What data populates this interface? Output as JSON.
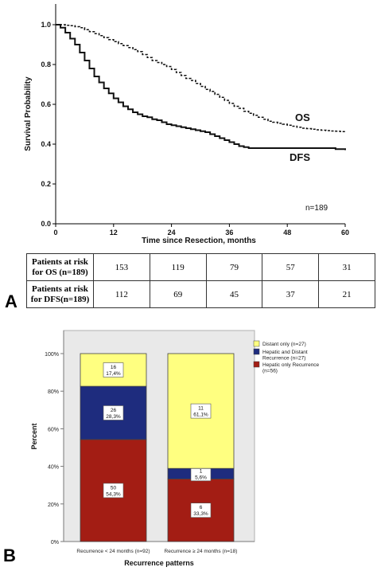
{
  "panels": {
    "a_label": "A",
    "b_label": "B"
  },
  "chart_data": [
    {
      "type": "line",
      "panel": "A",
      "xlabel": "Time since Resection, months",
      "ylabel": "Survival Probability",
      "xlim": [
        0,
        60
      ],
      "ylim": [
        0.0,
        1.0
      ],
      "x_ticks": [
        "0",
        "12",
        "24",
        "36",
        "48",
        "60"
      ],
      "y_ticks": [
        "0.0",
        "0.2",
        "0.4",
        "0.6",
        "0.8",
        "1.0"
      ],
      "annotation": "n=189",
      "series": [
        {
          "name": "OS",
          "style": "dashed",
          "color": "#111111",
          "points": [
            [
              0,
              1.0
            ],
            [
              1,
              1.0
            ],
            [
              2,
              0.997
            ],
            [
              3,
              0.995
            ],
            [
              4,
              0.99
            ],
            [
              5,
              0.985
            ],
            [
              6,
              0.975
            ],
            [
              7,
              0.965
            ],
            [
              8,
              0.955
            ],
            [
              9,
              0.945
            ],
            [
              10,
              0.935
            ],
            [
              11,
              0.925
            ],
            [
              12,
              0.915
            ],
            [
              13,
              0.905
            ],
            [
              14,
              0.895
            ],
            [
              15,
              0.885
            ],
            [
              16,
              0.875
            ],
            [
              17,
              0.865
            ],
            [
              18,
              0.85
            ],
            [
              19,
              0.835
            ],
            [
              20,
              0.82
            ],
            [
              21,
              0.81
            ],
            [
              22,
              0.8
            ],
            [
              23,
              0.79
            ],
            [
              24,
              0.775
            ],
            [
              25,
              0.76
            ],
            [
              26,
              0.745
            ],
            [
              27,
              0.73
            ],
            [
              28,
              0.72
            ],
            [
              29,
              0.705
            ],
            [
              30,
              0.69
            ],
            [
              31,
              0.675
            ],
            [
              32,
              0.665
            ],
            [
              33,
              0.65
            ],
            [
              34,
              0.635
            ],
            [
              35,
              0.62
            ],
            [
              36,
              0.605
            ],
            [
              37,
              0.59
            ],
            [
              38,
              0.58
            ],
            [
              39,
              0.565
            ],
            [
              40,
              0.555
            ],
            [
              41,
              0.545
            ],
            [
              42,
              0.535
            ],
            [
              43,
              0.525
            ],
            [
              44,
              0.515
            ],
            [
              45,
              0.51
            ],
            [
              46,
              0.505
            ],
            [
              47,
              0.5
            ],
            [
              48,
              0.495
            ],
            [
              49,
              0.49
            ],
            [
              50,
              0.485
            ],
            [
              51,
              0.48
            ],
            [
              52,
              0.478
            ],
            [
              53,
              0.475
            ],
            [
              54,
              0.472
            ],
            [
              55,
              0.47
            ],
            [
              56,
              0.468
            ],
            [
              57,
              0.466
            ],
            [
              58,
              0.465
            ],
            [
              59,
              0.463
            ],
            [
              60,
              0.46
            ]
          ]
        },
        {
          "name": "DFS",
          "style": "solid",
          "color": "#111111",
          "points": [
            [
              0,
              1.0
            ],
            [
              1,
              0.985
            ],
            [
              2,
              0.96
            ],
            [
              3,
              0.93
            ],
            [
              4,
              0.9
            ],
            [
              5,
              0.86
            ],
            [
              6,
              0.82
            ],
            [
              7,
              0.78
            ],
            [
              8,
              0.74
            ],
            [
              9,
              0.71
            ],
            [
              10,
              0.68
            ],
            [
              11,
              0.655
            ],
            [
              12,
              0.63
            ],
            [
              13,
              0.61
            ],
            [
              14,
              0.59
            ],
            [
              15,
              0.575
            ],
            [
              16,
              0.56
            ],
            [
              17,
              0.55
            ],
            [
              18,
              0.54
            ],
            [
              19,
              0.535
            ],
            [
              20,
              0.525
            ],
            [
              21,
              0.52
            ],
            [
              22,
              0.51
            ],
            [
              23,
              0.5
            ],
            [
              24,
              0.495
            ],
            [
              25,
              0.49
            ],
            [
              26,
              0.485
            ],
            [
              27,
              0.48
            ],
            [
              28,
              0.475
            ],
            [
              29,
              0.47
            ],
            [
              30,
              0.465
            ],
            [
              31,
              0.46
            ],
            [
              32,
              0.45
            ],
            [
              33,
              0.44
            ],
            [
              34,
              0.43
            ],
            [
              35,
              0.42
            ],
            [
              36,
              0.41
            ],
            [
              37,
              0.4
            ],
            [
              38,
              0.39
            ],
            [
              39,
              0.385
            ],
            [
              40,
              0.38
            ],
            [
              42,
              0.38
            ],
            [
              44,
              0.38
            ],
            [
              46,
              0.38
            ],
            [
              48,
              0.38
            ],
            [
              50,
              0.38
            ],
            [
              52,
              0.38
            ],
            [
              54,
              0.38
            ],
            [
              56,
              0.38
            ],
            [
              58,
              0.375
            ],
            [
              60,
              0.37
            ]
          ]
        }
      ],
      "risk_table": {
        "rows": [
          {
            "label": "Patients at risk for OS (n=189)",
            "values": [
              "153",
              "119",
              "79",
              "57",
              "31"
            ]
          },
          {
            "label": "Patients at risk for DFS(n=189)",
            "values": [
              "112",
              "69",
              "45",
              "37",
              "21"
            ]
          }
        ]
      }
    },
    {
      "type": "bar",
      "stacked": true,
      "panel": "B",
      "xlabel": "Recurrence patterns",
      "ylabel": "Percent",
      "ylim": [
        0,
        100
      ],
      "y_ticks": [
        "0%",
        "20%",
        "40%",
        "60%",
        "80%",
        "100%"
      ],
      "categories": [
        "Recurrence < 24 months (n=92)",
        "Recurrence ≥ 24 months (n=18)"
      ],
      "legend_position": "top-right",
      "series": [
        {
          "name": "Hepatic only Recurrence (n=56)",
          "color": "#a31d14",
          "values": [
            54.3,
            33.3
          ],
          "labels": [
            [
              "50",
              "54,3%"
            ],
            [
              "6",
              "33,3%"
            ]
          ]
        },
        {
          "name": "Hepatic and Distant Recurrence (n=27)",
          "color": "#1e2c7e",
          "values": [
            28.3,
            5.6
          ],
          "labels": [
            [
              "26",
              "28,3%"
            ],
            [
              "1",
              "5,6%"
            ]
          ]
        },
        {
          "name": "Distant only (n=27)",
          "color": "#ffff80",
          "values": [
            17.4,
            61.1
          ],
          "labels": [
            [
              "16",
              "17,4%"
            ],
            [
              "11",
              "61,1%"
            ]
          ]
        }
      ]
    }
  ]
}
